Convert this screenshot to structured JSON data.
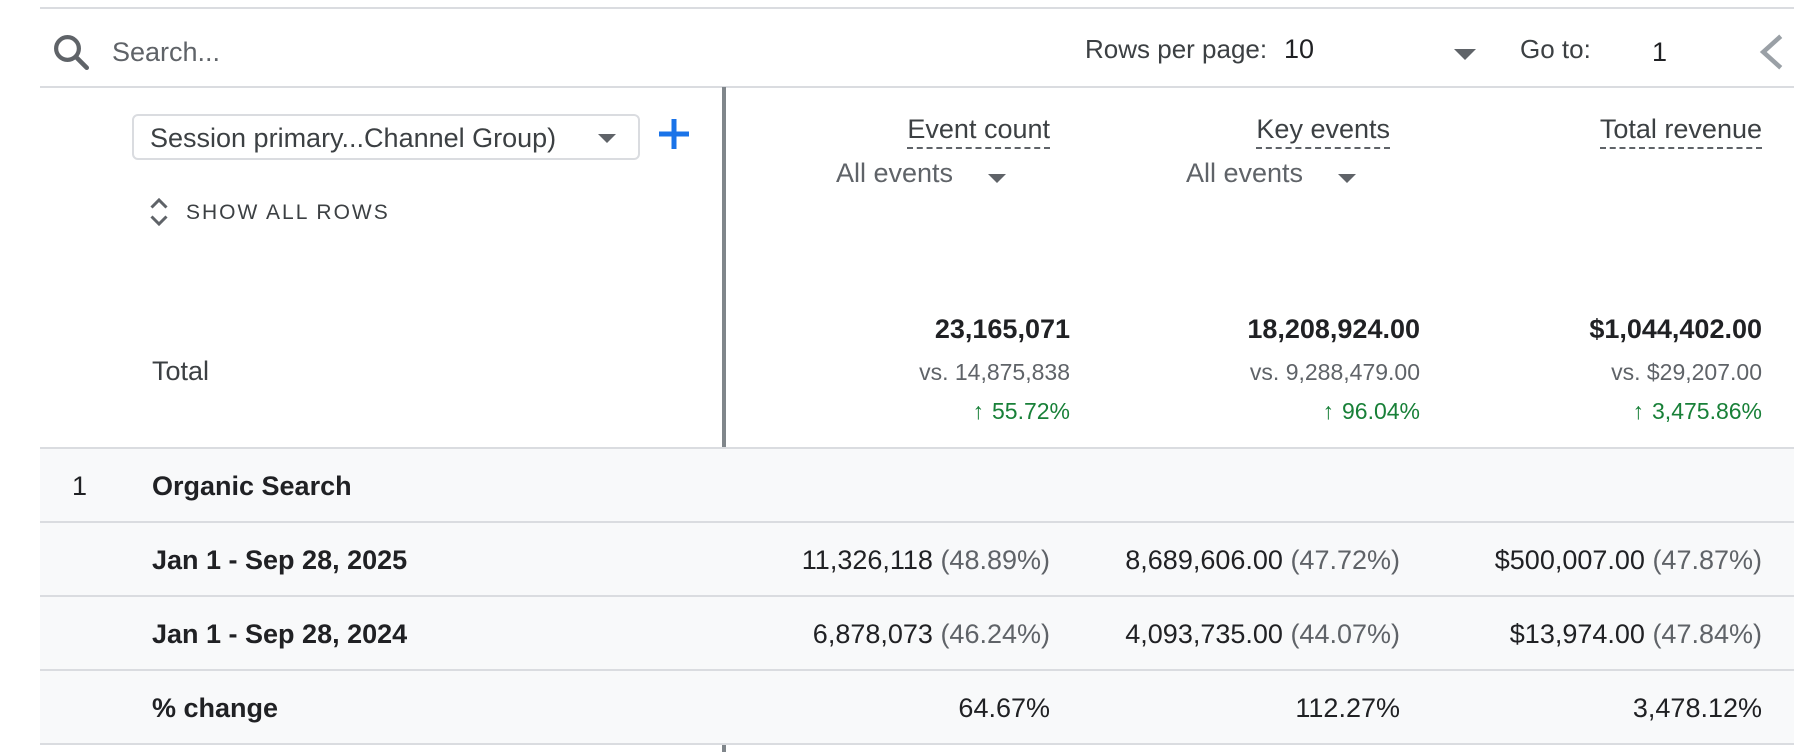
{
  "toolbar": {
    "search_placeholder": "Search...",
    "rows_per_page_label": "Rows per page:",
    "rows_per_page_value": "10",
    "goto_label": "Go to:",
    "goto_value": "1"
  },
  "dimension": {
    "picker_label": "Session primary...Channel Group)",
    "show_all_rows": "SHOW ALL ROWS"
  },
  "columns": [
    {
      "title": "Event count",
      "filter": "All events"
    },
    {
      "title": "Key events",
      "filter": "All events"
    },
    {
      "title": "Total revenue",
      "filter": ""
    }
  ],
  "totals": {
    "label": "Total",
    "cells": [
      {
        "value": "23,165,071",
        "vs": "vs. 14,875,838",
        "change": "55.72%"
      },
      {
        "value": "18,208,924.00",
        "vs": "vs. 9,288,479.00",
        "change": "96.04%"
      },
      {
        "value": "$1,044,402.00",
        "vs": "vs. $29,207.00",
        "change": "3,475.86%"
      }
    ],
    "change_color": "#188038"
  },
  "rows": [
    {
      "index": "1",
      "label": "Organic Search",
      "cells": []
    },
    {
      "index": "",
      "label": "Jan 1 - Sep 28, 2025",
      "cells": [
        {
          "value": "11,326,118",
          "pct": "(48.89%)"
        },
        {
          "value": "8,689,606.00",
          "pct": "(47.72%)"
        },
        {
          "value": "$500,007.00",
          "pct": "(47.87%)"
        }
      ]
    },
    {
      "index": "",
      "label": "Jan 1 - Sep 28, 2024",
      "cells": [
        {
          "value": "6,878,073",
          "pct": "(46.24%)"
        },
        {
          "value": "4,093,735.00",
          "pct": "(44.07%)"
        },
        {
          "value": "$13,974.00",
          "pct": "(47.84%)"
        }
      ]
    },
    {
      "index": "",
      "label": "% change",
      "cells": [
        {
          "value": "64.67%",
          "pct": ""
        },
        {
          "value": "112.27%",
          "pct": ""
        },
        {
          "value": "3,478.12%",
          "pct": ""
        }
      ]
    }
  ],
  "icons": {
    "search": "search-icon",
    "dropdown": "chevron-down-icon",
    "add": "plus-icon",
    "expand": "unfold-icon",
    "prev": "chevron-left-icon",
    "trend": "arrow-up-icon"
  },
  "colors": {
    "accent": "#1a73e8",
    "positive": "#188038"
  }
}
